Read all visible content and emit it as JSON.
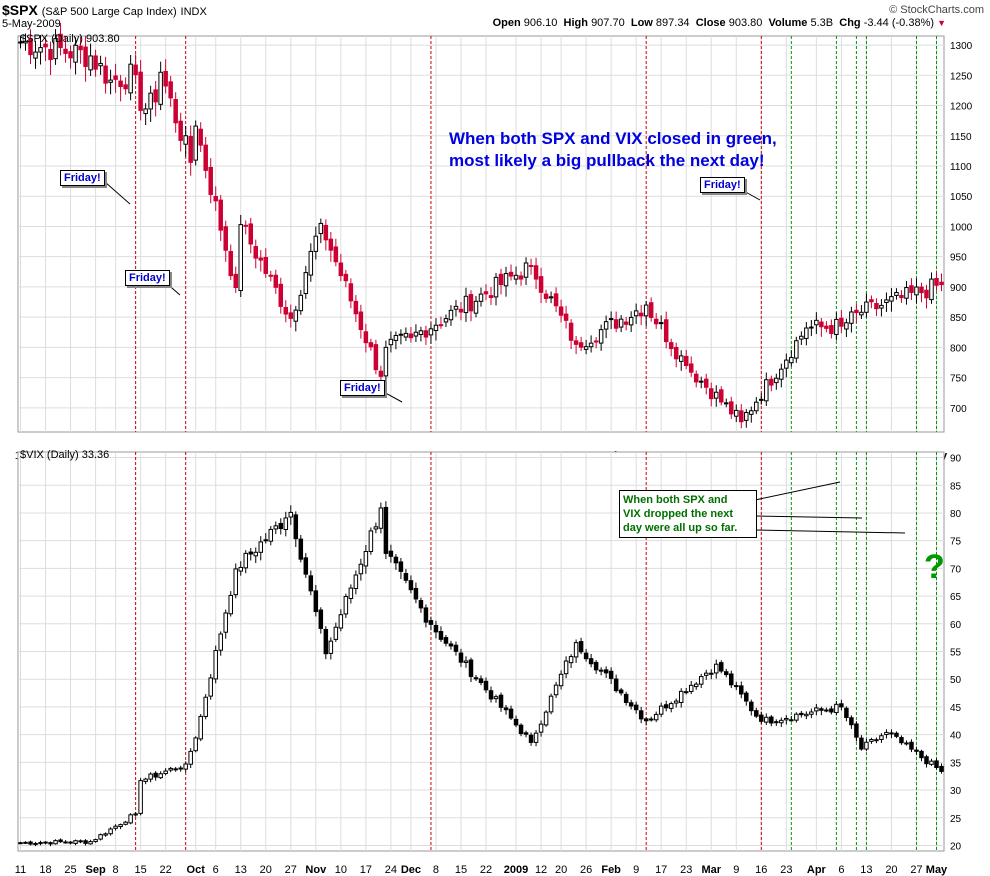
{
  "header": {
    "symbol": "$SPX",
    "name": "(S&P 500 Large Cap Index)",
    "exchange": "INDX",
    "date": "5-May-2009",
    "credit": "© StockCharts.com",
    "open_label": "Open",
    "open": "906.10",
    "high_label": "High",
    "high": "907.70",
    "low_label": "Low",
    "low": "897.34",
    "close_label": "Close",
    "close": "903.80",
    "volume_label": "Volume",
    "volume": "5.3B",
    "chg_label": "Chg",
    "chg": "-3.44 (-0.38%)"
  },
  "annotations": {
    "main_note_line1": "When both SPX and VIX closed in green,",
    "main_note_line2": "most likely a big pullback the next day!",
    "friday": "Friday!",
    "vix_note_line1": "When both SPX and",
    "vix_note_line2": "VIX dropped the next",
    "vix_note_line3": "day were all up so far.",
    "question": "?"
  },
  "colors": {
    "up_candle": "#000000",
    "down_candle_spx": "#cc0033",
    "down_candle_vix": "#000000",
    "red_vline": "#cc0000",
    "green_vline": "#009900",
    "grid": "#dddddd"
  },
  "chart_data": [
    {
      "type": "candlestick",
      "panel_label": "$SPX (Daily) 903.80",
      "x_ticks": [
        "11",
        "18",
        "25",
        "Sep",
        "8",
        "15",
        "22",
        "Oct",
        "6",
        "13",
        "20",
        "27",
        "Nov",
        "10",
        "17",
        "24",
        "Dec",
        "8",
        "15",
        "22",
        "2009",
        "12",
        "20",
        "26",
        "Feb",
        "9",
        "17",
        "23",
        "Mar",
        "9",
        "16",
        "23",
        "Apr",
        "6",
        "13",
        "20",
        "27",
        "May"
      ],
      "y_ticks": [
        700,
        750,
        800,
        850,
        900,
        950,
        1000,
        1050,
        1100,
        1150,
        1200,
        1250,
        1300
      ],
      "ylim": [
        660,
        1315
      ],
      "anchors": [
        {
          "date": "2008-08-11",
          "close": 1305
        },
        {
          "date": "2008-08-29",
          "close": 1282
        },
        {
          "date": "2008-09-05",
          "close": 1242
        },
        {
          "date": "2008-09-12",
          "close": 1251
        },
        {
          "date": "2008-09-15",
          "close": 1192
        },
        {
          "date": "2008-09-18",
          "close": 1206
        },
        {
          "date": "2008-09-19",
          "close": 1255
        },
        {
          "date": "2008-09-29",
          "close": 1106
        },
        {
          "date": "2008-09-30",
          "close": 1166
        },
        {
          "date": "2008-10-10",
          "close": 899
        },
        {
          "date": "2008-10-13",
          "close": 1003
        },
        {
          "date": "2008-10-27",
          "close": 848
        },
        {
          "date": "2008-11-04",
          "close": 1005
        },
        {
          "date": "2008-11-20",
          "close": 752
        },
        {
          "date": "2008-11-21",
          "close": 800
        },
        {
          "date": "2008-12-01",
          "close": 816
        },
        {
          "date": "2009-01-06",
          "close": 935
        },
        {
          "date": "2009-01-20",
          "close": 805
        },
        {
          "date": "2009-02-09",
          "close": 870
        },
        {
          "date": "2009-02-20",
          "close": 770
        },
        {
          "date": "2009-03-09",
          "close": 677
        },
        {
          "date": "2009-03-26",
          "close": 832
        },
        {
          "date": "2009-04-06",
          "close": 835
        },
        {
          "date": "2009-04-13",
          "close": 858
        },
        {
          "date": "2009-05-05",
          "close": 903.8
        }
      ],
      "red_dates": [
        "2008-09-12",
        "2008-09-26",
        "2008-12-05",
        "2009-02-09",
        "2009-03-13"
      ]
    },
    {
      "type": "candlestick",
      "panel_label": "$VIX (Daily) 33.36",
      "x_ticks": [
        "11",
        "18",
        "25",
        "Sep",
        "8",
        "15",
        "22",
        "Oct",
        "6",
        "13",
        "20",
        "27",
        "Nov",
        "10",
        "17",
        "24",
        "Dec",
        "8",
        "15",
        "22",
        "2009",
        "12",
        "20",
        "26",
        "Feb",
        "9",
        "17",
        "23",
        "Mar",
        "9",
        "16",
        "23",
        "Apr",
        "6",
        "13",
        "20",
        "27",
        "May"
      ],
      "y_ticks": [
        20,
        25,
        30,
        35,
        40,
        45,
        50,
        55,
        60,
        65,
        70,
        75,
        80,
        85,
        90
      ],
      "ylim": [
        19,
        91
      ],
      "anchors": [
        {
          "date": "2008-08-11",
          "close": 20.5
        },
        {
          "date": "2008-08-29",
          "close": 20.7
        },
        {
          "date": "2008-09-12",
          "close": 25.7
        },
        {
          "date": "2008-09-15",
          "close": 31.7
        },
        {
          "date": "2008-09-26",
          "close": 34.7
        },
        {
          "date": "2008-09-30",
          "close": 39.4
        },
        {
          "date": "2008-10-10",
          "close": 69.9
        },
        {
          "date": "2008-10-24",
          "close": 79.1
        },
        {
          "date": "2008-10-27",
          "close": 80.1
        },
        {
          "date": "2008-11-05",
          "close": 54.6
        },
        {
          "date": "2008-11-20",
          "close": 80.9
        },
        {
          "date": "2008-11-21",
          "close": 72.7
        },
        {
          "date": "2008-12-05",
          "close": 59.9
        },
        {
          "date": "2009-01-06",
          "close": 38.6
        },
        {
          "date": "2009-01-20",
          "close": 56.6
        },
        {
          "date": "2009-02-09",
          "close": 42.5
        },
        {
          "date": "2009-03-02",
          "close": 52.7
        },
        {
          "date": "2009-03-13",
          "close": 42.4
        },
        {
          "date": "2009-04-06",
          "close": 45.0
        },
        {
          "date": "2009-04-13",
          "close": 37.4
        },
        {
          "date": "2009-04-20",
          "close": 40.4
        },
        {
          "date": "2009-05-05",
          "close": 33.36
        }
      ],
      "red_dates": [
        "2008-09-12",
        "2008-09-26",
        "2008-12-05",
        "2009-02-09",
        "2009-03-13"
      ],
      "green_dates": [
        "2009-03-23",
        "2009-04-03",
        "2009-04-09",
        "2009-04-14",
        "2009-04-28",
        "2009-05-04"
      ]
    }
  ]
}
